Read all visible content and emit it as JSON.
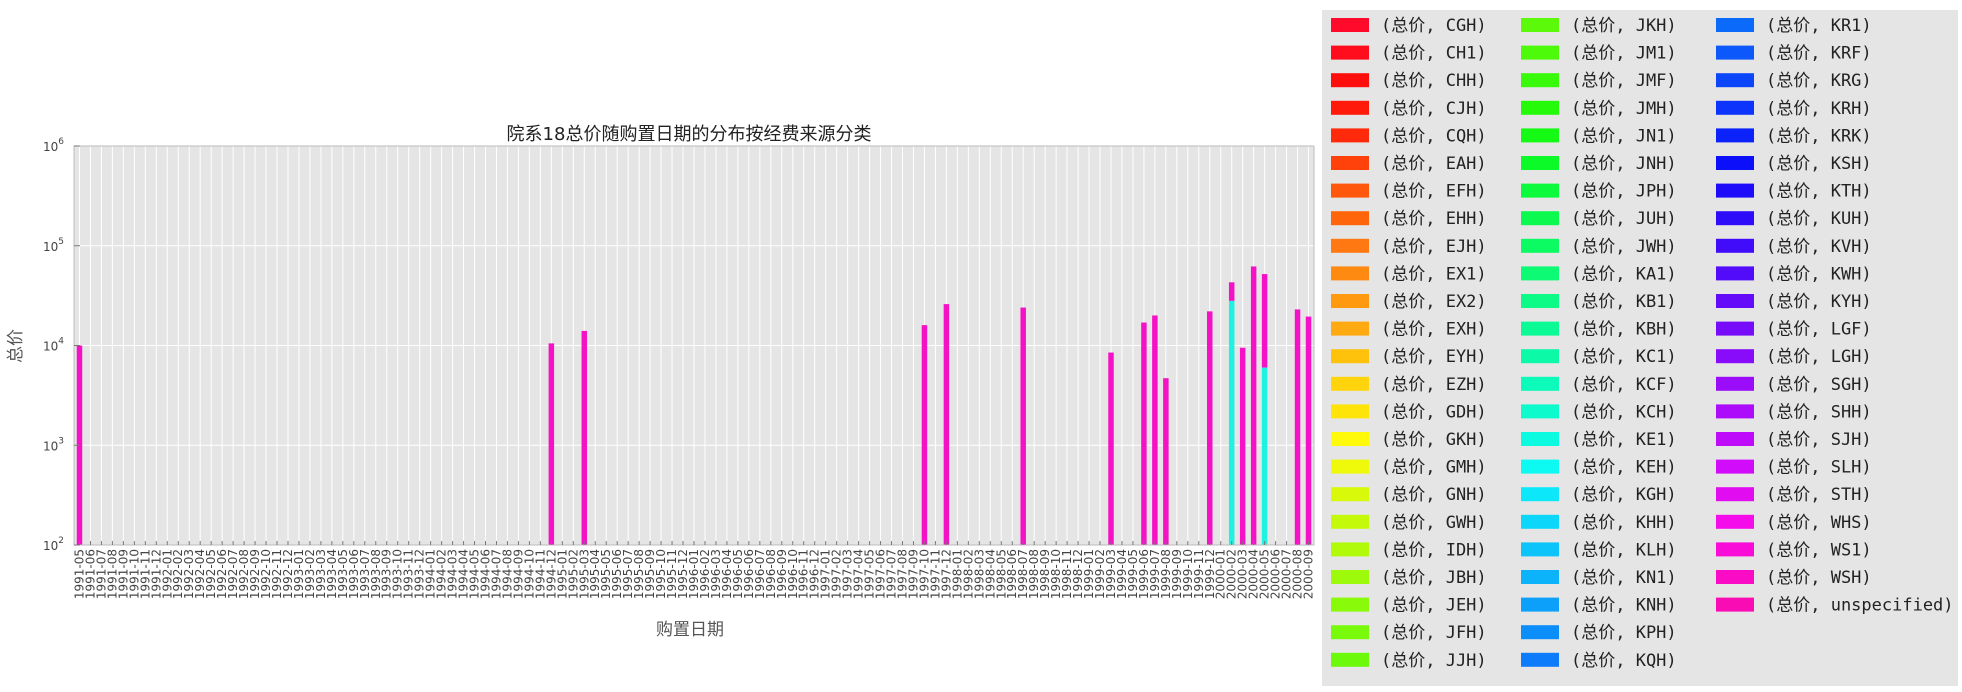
{
  "chart_data": {
    "type": "bar",
    "stacked": true,
    "title": "院系18总价随购置日期的分布按经费来源分类",
    "xlabel": "购置日期",
    "ylabel": "总价",
    "y_scale": "log",
    "ylim": [
      100,
      1000000
    ],
    "y_ticks": [
      {
        "value": 100,
        "base": "10",
        "exp": "2"
      },
      {
        "value": 1000,
        "base": "10",
        "exp": "3"
      },
      {
        "value": 10000,
        "base": "10",
        "exp": "4"
      },
      {
        "value": 100000,
        "base": "10",
        "exp": "5"
      },
      {
        "value": 1000000,
        "base": "10",
        "exp": "6"
      }
    ],
    "grid": true,
    "legend_position": "outside-right",
    "background_color": "#e5e5e5",
    "grid_color": "#ffffff",
    "categories": [
      "1991-05",
      "1991-06",
      "1991-07",
      "1991-08",
      "1991-09",
      "1991-10",
      "1991-11",
      "1991-12",
      "1992-01",
      "1992-02",
      "1992-03",
      "1992-04",
      "1992-05",
      "1992-06",
      "1992-07",
      "1992-08",
      "1992-09",
      "1992-10",
      "1992-11",
      "1992-12",
      "1993-01",
      "1993-02",
      "1993-03",
      "1993-04",
      "1993-05",
      "1993-06",
      "1993-07",
      "1993-08",
      "1993-09",
      "1993-10",
      "1993-11",
      "1993-12",
      "1994-01",
      "1994-02",
      "1994-03",
      "1994-04",
      "1994-05",
      "1994-06",
      "1994-07",
      "1994-08",
      "1994-09",
      "1994-10",
      "1994-11",
      "1994-12",
      "1995-01",
      "1995-02",
      "1995-03",
      "1995-04",
      "1995-05",
      "1995-06",
      "1995-07",
      "1995-08",
      "1995-09",
      "1995-10",
      "1995-11",
      "1995-12",
      "1996-01",
      "1996-02",
      "1996-03",
      "1996-04",
      "1996-05",
      "1996-06",
      "1996-07",
      "1996-08",
      "1996-09",
      "1996-10",
      "1996-11",
      "1996-12",
      "1997-01",
      "1997-02",
      "1997-03",
      "1997-04",
      "1997-05",
      "1997-06",
      "1997-07",
      "1997-08",
      "1997-09",
      "1997-10",
      "1997-11",
      "1997-12",
      "1998-01",
      "1998-02",
      "1998-03",
      "1998-04",
      "1998-05",
      "1998-06",
      "1998-07",
      "1998-08",
      "1998-09",
      "1998-10",
      "1998-11",
      "1998-12",
      "1999-01",
      "1999-02",
      "1999-03",
      "1999-04",
      "1999-05",
      "1999-06",
      "1999-07",
      "1999-08",
      "1999-09",
      "1999-10",
      "1999-11",
      "1999-12",
      "2000-01",
      "2000-02",
      "2000-03",
      "2000-04",
      "2000-05",
      "2000-06",
      "2000-07",
      "2000-08",
      "2000-09"
    ],
    "legend": [
      {
        "label": "(总价, CGH)",
        "color": "#ff0a2a"
      },
      {
        "label": "(总价, CH1)",
        "color": "#ff0d1c"
      },
      {
        "label": "(总价, CHH)",
        "color": "#ff0e0e"
      },
      {
        "label": "(总价, CJH)",
        "color": "#ff1a0c"
      },
      {
        "label": "(总价, CQH)",
        "color": "#ff2a0c"
      },
      {
        "label": "(总价, EAH)",
        "color": "#ff420c"
      },
      {
        "label": "(总价, EFH)",
        "color": "#ff580c"
      },
      {
        "label": "(总价, EHH)",
        "color": "#ff660c"
      },
      {
        "label": "(总价, EJH)",
        "color": "#ff7812"
      },
      {
        "label": "(总价, EX1)",
        "color": "#ff8a12"
      },
      {
        "label": "(总价, EX2)",
        "color": "#ff9a10"
      },
      {
        "label": "(总价, EXH)",
        "color": "#ffaa10"
      },
      {
        "label": "(总价, EYH)",
        "color": "#ffc20c"
      },
      {
        "label": "(总价, EZH)",
        "color": "#ffd40c"
      },
      {
        "label": "(总价, GDH)",
        "color": "#ffe40a"
      },
      {
        "label": "(总价, GKH)",
        "color": "#fffa0a"
      },
      {
        "label": "(总价, GMH)",
        "color": "#eefa0a"
      },
      {
        "label": "(总价, GNH)",
        "color": "#d8fa0a"
      },
      {
        "label": "(总价, GWH)",
        "color": "#c4fa0a"
      },
      {
        "label": "(总价, IDH)",
        "color": "#b0fa0a"
      },
      {
        "label": "(总价, JBH)",
        "color": "#9cfa0a"
      },
      {
        "label": "(总价, JEH)",
        "color": "#88fa0a"
      },
      {
        "label": "(总价, JFH)",
        "color": "#78fa0a"
      },
      {
        "label": "(总价, JJH)",
        "color": "#6cfa0a"
      },
      {
        "label": "(总价, JKH)",
        "color": "#5cfa0a"
      },
      {
        "label": "(总价, JM1)",
        "color": "#4cfa0a"
      },
      {
        "label": "(总价, JMF)",
        "color": "#38fa0a"
      },
      {
        "label": "(总价, JMH)",
        "color": "#24fa0a"
      },
      {
        "label": "(总价, JN1)",
        "color": "#14fa14"
      },
      {
        "label": "(总价, JNH)",
        "color": "#0cfa28"
      },
      {
        "label": "(总价, JPH)",
        "color": "#0cfa3c"
      },
      {
        "label": "(总价, JUH)",
        "color": "#0cfa50"
      },
      {
        "label": "(总价, JWH)",
        "color": "#0cfa62"
      },
      {
        "label": "(总价, KA1)",
        "color": "#0cfa74"
      },
      {
        "label": "(总价, KB1)",
        "color": "#0cfa86"
      },
      {
        "label": "(总价, KBH)",
        "color": "#0cfa96"
      },
      {
        "label": "(总价, KC1)",
        "color": "#0cfaa8"
      },
      {
        "label": "(总价, KCF)",
        "color": "#0cfaba"
      },
      {
        "label": "(总价, KCH)",
        "color": "#0cfacc"
      },
      {
        "label": "(总价, KE1)",
        "color": "#0cfae0"
      },
      {
        "label": "(总价, KEH)",
        "color": "#0cfaf2"
      },
      {
        "label": "(总价, KGH)",
        "color": "#0ce8fa"
      },
      {
        "label": "(总价, KHH)",
        "color": "#0cd6fa"
      },
      {
        "label": "(总价, KLH)",
        "color": "#0cc4fa"
      },
      {
        "label": "(总价, KN1)",
        "color": "#0cb2fa"
      },
      {
        "label": "(总价, KNH)",
        "color": "#0ca0fa"
      },
      {
        "label": "(总价, KPH)",
        "color": "#0c8efa"
      },
      {
        "label": "(总价, KQH)",
        "color": "#0c7cfa"
      },
      {
        "label": "(总价, KR1)",
        "color": "#0c6afa"
      },
      {
        "label": "(总价, KRF)",
        "color": "#0c58fa"
      },
      {
        "label": "(总价, KRG)",
        "color": "#0c46fa"
      },
      {
        "label": "(总价, KRH)",
        "color": "#0c34fa"
      },
      {
        "label": "(总价, KRK)",
        "color": "#0c22fa"
      },
      {
        "label": "(总价, KSH)",
        "color": "#0c10fa"
      },
      {
        "label": "(总价, KTH)",
        "color": "#1c0cfa"
      },
      {
        "label": "(总价, KUH)",
        "color": "#2e0cfa"
      },
      {
        "label": "(总价, KVH)",
        "color": "#400cfa"
      },
      {
        "label": "(总价, KWH)",
        "color": "#520cfa"
      },
      {
        "label": "(总价, KYH)",
        "color": "#640cfa"
      },
      {
        "label": "(总价, LGF)",
        "color": "#760cfa"
      },
      {
        "label": "(总价, LGH)",
        "color": "#880cfa"
      },
      {
        "label": "(总价, SGH)",
        "color": "#9a0cfa"
      },
      {
        "label": "(总价, SHH)",
        "color": "#ac0cfa"
      },
      {
        "label": "(总价, SJH)",
        "color": "#be0cfa"
      },
      {
        "label": "(总价, SLH)",
        "color": "#d00cfa"
      },
      {
        "label": "(总价, STH)",
        "color": "#e20cf0"
      },
      {
        "label": "(总价, WHS)",
        "color": "#f40cea"
      },
      {
        "label": "(总价, WS1)",
        "color": "#fa0cd8"
      },
      {
        "label": "(总价, WSH)",
        "color": "#fa0cc6"
      },
      {
        "label": "(总价, unspecified)",
        "color": "#fa0cb4"
      }
    ],
    "series": [
      {
        "name": "(总价, unspecified)",
        "color": "#f511c6",
        "points": [
          {
            "x": "1991-05",
            "y": 10000
          },
          {
            "x": "1994-12",
            "y": 10500
          },
          {
            "x": "1995-03",
            "y": 14000
          },
          {
            "x": "1997-10",
            "y": 16000
          },
          {
            "x": "1997-12",
            "y": 26000
          },
          {
            "x": "1998-07",
            "y": 24000
          },
          {
            "x": "1999-03",
            "y": 8500
          },
          {
            "x": "1999-06",
            "y": 17000
          },
          {
            "x": "1999-07",
            "y": 20000
          },
          {
            "x": "1999-08",
            "y": 4700
          },
          {
            "x": "1999-12",
            "y": 22000
          },
          {
            "x": "2000-02",
            "y": 43000,
            "base": 28000
          },
          {
            "x": "2000-03",
            "y": 9500
          },
          {
            "x": "2000-04",
            "y": 62000
          },
          {
            "x": "2000-05",
            "y": 52000,
            "base": 6000
          },
          {
            "x": "2000-08",
            "y": 23000
          },
          {
            "x": "2000-09",
            "y": 19500
          }
        ]
      },
      {
        "name": "(总价, KEH)",
        "color": "#1ef2e0",
        "points": [
          {
            "x": "2000-02",
            "y": 28000
          },
          {
            "x": "2000-05",
            "y": 6000
          }
        ]
      }
    ]
  }
}
